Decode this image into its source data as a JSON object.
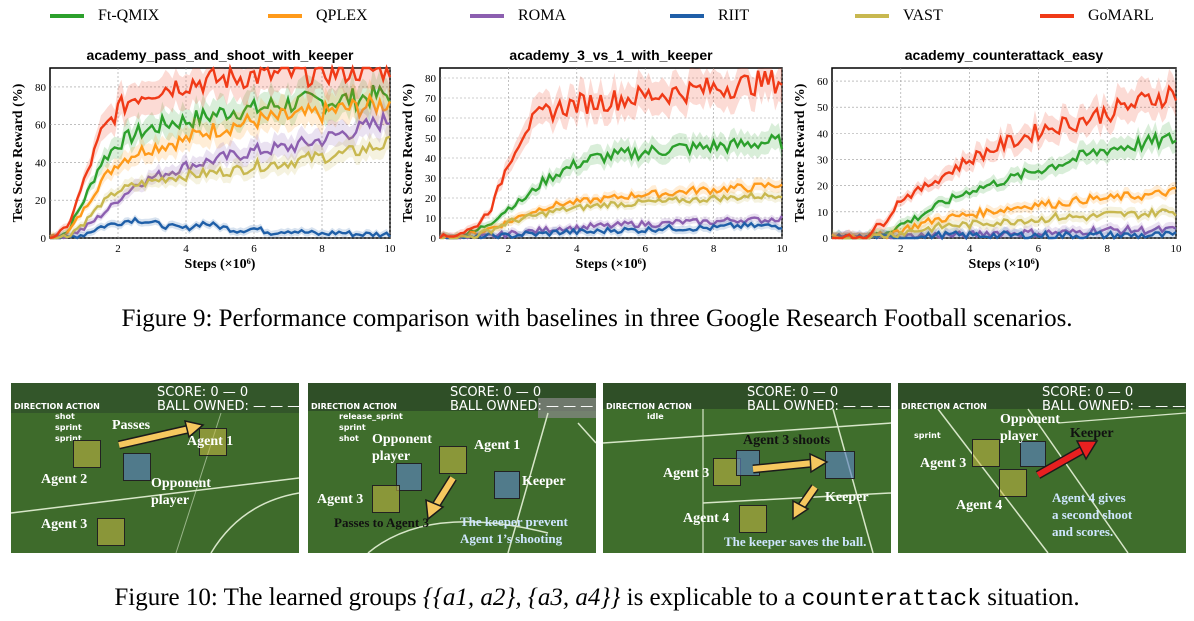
{
  "legend": [
    {
      "name": "Ft-QMIX",
      "color": "#2ca02c"
    },
    {
      "name": "QPLEX",
      "color": "#ff9a1a"
    },
    {
      "name": "ROMA",
      "color": "#8c5fb0"
    },
    {
      "name": "RIIT",
      "color": "#1f5fa8"
    },
    {
      "name": "VAST",
      "color": "#c8b850"
    },
    {
      "name": "GoMARL",
      "color": "#f03a17"
    }
  ],
  "chart_data": [
    {
      "type": "line",
      "title": "academy_pass_and_shoot_with_keeper",
      "xlabel": "Steps (×10⁶)",
      "ylabel": "Test Score Reward (%)",
      "xlim": [
        0,
        10
      ],
      "ylim": [
        0,
        90
      ],
      "xticks": [
        2,
        4,
        6,
        8,
        10
      ],
      "yticks": [
        0,
        20,
        40,
        60,
        80
      ],
      "x": [
        0,
        0.5,
        1,
        1.5,
        2,
        2.5,
        3,
        3.5,
        4,
        4.5,
        5,
        5.5,
        6,
        6.5,
        7,
        7.5,
        8,
        8.5,
        9,
        9.5,
        10
      ],
      "series": [
        {
          "name": "Ft-QMIX",
          "values": [
            0,
            3,
            20,
            40,
            50,
            55,
            58,
            61,
            62,
            64,
            66,
            68,
            68,
            70,
            71,
            72,
            72,
            73,
            74,
            75,
            76
          ]
        },
        {
          "name": "QPLEX",
          "values": [
            0,
            2,
            15,
            30,
            40,
            45,
            48,
            50,
            52,
            56,
            58,
            60,
            62,
            63,
            64,
            65,
            66,
            68,
            69,
            70,
            72
          ]
        },
        {
          "name": "ROMA",
          "values": [
            0,
            1,
            5,
            12,
            20,
            28,
            32,
            35,
            38,
            40,
            42,
            44,
            46,
            47,
            48,
            50,
            52,
            55,
            57,
            60,
            63
          ]
        },
        {
          "name": "RIIT",
          "values": [
            0,
            0,
            2,
            6,
            8,
            10,
            8,
            6,
            5,
            8,
            6,
            4,
            5,
            3,
            4,
            3,
            2,
            3,
            2,
            2,
            2
          ]
        },
        {
          "name": "VAST",
          "values": [
            0,
            1,
            8,
            18,
            25,
            28,
            30,
            32,
            33,
            34,
            35,
            36,
            38,
            39,
            40,
            42,
            43,
            44,
            46,
            48,
            50
          ]
        },
        {
          "name": "GoMARL",
          "values": [
            0,
            5,
            30,
            55,
            68,
            75,
            78,
            80,
            82,
            83,
            84,
            85,
            86,
            86,
            87,
            87,
            88,
            88,
            89,
            89,
            90
          ]
        }
      ]
    },
    {
      "type": "line",
      "title": "academy_3_vs_1_with_keeper",
      "xlabel": "Steps (×10⁶)",
      "ylabel": "Test Score Reward (%)",
      "xlim": [
        0,
        10
      ],
      "ylim": [
        0,
        85
      ],
      "xticks": [
        2,
        4,
        6,
        8,
        10
      ],
      "yticks": [
        0,
        10,
        20,
        30,
        40,
        50,
        60,
        70,
        80
      ],
      "x": [
        0,
        0.5,
        1,
        1.5,
        2,
        2.5,
        3,
        3.5,
        4,
        4.5,
        5,
        5.5,
        6,
        6.5,
        7,
        7.5,
        8,
        8.5,
        9,
        9.5,
        10
      ],
      "series": [
        {
          "name": "Ft-QMIX",
          "values": [
            0,
            1,
            3,
            8,
            15,
            20,
            28,
            33,
            37,
            40,
            41,
            42,
            43,
            44,
            45,
            45,
            46,
            46,
            47,
            48,
            48
          ]
        },
        {
          "name": "QPLEX",
          "values": [
            0,
            0,
            2,
            5,
            8,
            12,
            15,
            17,
            18,
            19,
            20,
            21,
            22,
            22,
            23,
            24,
            24,
            25,
            25,
            26,
            27
          ]
        },
        {
          "name": "ROMA",
          "values": [
            0,
            0,
            0,
            1,
            2,
            3,
            4,
            5,
            5,
            6,
            6,
            7,
            7,
            7,
            8,
            8,
            8,
            9,
            9,
            9,
            10
          ]
        },
        {
          "name": "RIIT",
          "values": [
            0,
            0,
            0,
            1,
            1,
            2,
            2,
            3,
            3,
            3,
            4,
            4,
            4,
            5,
            5,
            5,
            5,
            6,
            6,
            6,
            6
          ]
        },
        {
          "name": "VAST",
          "values": [
            0,
            0,
            1,
            4,
            8,
            10,
            12,
            14,
            15,
            16,
            17,
            17,
            18,
            18,
            19,
            19,
            20,
            20,
            21,
            21,
            22
          ]
        },
        {
          "name": "GoMARL",
          "values": [
            0,
            2,
            5,
            15,
            38,
            55,
            62,
            65,
            67,
            68,
            69,
            70,
            71,
            72,
            73,
            74,
            75,
            76,
            77,
            78,
            79
          ]
        }
      ]
    },
    {
      "type": "line",
      "title": "academy_counterattack_easy",
      "xlabel": "Steps (×10⁶)",
      "ylabel": "Test Score Reward (%)",
      "xlim": [
        0,
        10
      ],
      "ylim": [
        0,
        65
      ],
      "xticks": [
        2,
        4,
        6,
        8,
        10
      ],
      "yticks": [
        0,
        10,
        20,
        30,
        40,
        50,
        60
      ],
      "x": [
        0,
        0.5,
        1,
        1.5,
        2,
        2.5,
        3,
        3.5,
        4,
        4.5,
        5,
        5.5,
        6,
        6.5,
        7,
        7.5,
        8,
        8.5,
        9,
        9.5,
        10
      ],
      "series": [
        {
          "name": "Ft-QMIX",
          "values": [
            0,
            0,
            0,
            2,
            5,
            8,
            12,
            15,
            18,
            20,
            22,
            24,
            26,
            28,
            30,
            32,
            34,
            35,
            36,
            37,
            38
          ]
        },
        {
          "name": "QPLEX",
          "values": [
            0,
            0,
            0,
            1,
            3,
            5,
            7,
            8,
            9,
            10,
            11,
            12,
            13,
            13,
            14,
            15,
            15,
            16,
            16,
            17,
            18
          ]
        },
        {
          "name": "ROMA",
          "values": [
            0,
            0,
            0,
            0,
            0,
            1,
            1,
            1,
            1,
            2,
            2,
            2,
            2,
            2,
            2,
            3,
            3,
            3,
            3,
            3,
            3
          ]
        },
        {
          "name": "RIIT",
          "values": [
            0,
            0,
            0,
            0,
            0,
            0,
            1,
            1,
            1,
            1,
            1,
            1,
            1,
            1,
            1,
            1,
            1,
            1,
            1,
            1,
            1
          ]
        },
        {
          "name": "VAST",
          "values": [
            0,
            0,
            0,
            1,
            2,
            3,
            4,
            5,
            5,
            6,
            6,
            7,
            7,
            8,
            8,
            8,
            9,
            9,
            9,
            10,
            10
          ]
        },
        {
          "name": "GoMARL",
          "values": [
            0,
            0,
            1,
            6,
            15,
            18,
            22,
            26,
            30,
            33,
            36,
            38,
            41,
            43,
            44,
            46,
            48,
            50,
            52,
            54,
            56
          ]
        }
      ]
    }
  ],
  "fig9_caption": "Figure 9: Performance comparison with baselines in three Google Research Football scenarios.",
  "fig10_caption": {
    "prefix": "Figure 10: The learned groups {{a",
    "full_text": "Figure 10: The learned groups {{a1, a2}, {a3, a4}} is explicable to a counterattack situation.",
    "math": "{{a1, a2}, {a3, a4}}",
    "middle": " is explicable to a ",
    "code": "counterattack",
    "suffix": " situation."
  },
  "hud": {
    "score": "SCORE: 0 — 0",
    "ball": "BALL OWNED: — — —",
    "direction": "DIRECTION ACTION"
  },
  "screens": [
    {
      "actions": [
        "shot",
        "sprint",
        "sprint"
      ],
      "labels": {
        "passes": "Passes",
        "agent1": "Agent 1",
        "agent2": "Agent 2",
        "opp": "Opponent",
        "opp2": "player",
        "agent3": "Agent 3"
      }
    },
    {
      "actions": [
        "release_sprint",
        "sprint",
        "shot"
      ],
      "labels": {
        "opp": "Opponent",
        "opp2": "player",
        "agent1": "Agent 1",
        "agent3": "Agent 3",
        "keeper": "Keeper",
        "passes": "Passes to Agent 3",
        "prev1": "The keeper prevent",
        "prev2": "Agent 1’s shooting"
      }
    },
    {
      "actions": [
        "idle"
      ],
      "labels": {
        "shoots": "Agent 3 shoots",
        "agent3": "Agent 3",
        "keeper": "Keeper",
        "agent4": "Agent 4",
        "saves": "The keeper saves the ball."
      }
    },
    {
      "actions": [
        "sprint"
      ],
      "labels": {
        "opp": "Opponent",
        "opp2": "player",
        "keeper": "Keeper",
        "agent3": "Agent 3",
        "agent4": "Agent 4",
        "g1": "Agent 4 gives",
        "g2": "a second shoot",
        "g3": "and scores."
      }
    }
  ]
}
